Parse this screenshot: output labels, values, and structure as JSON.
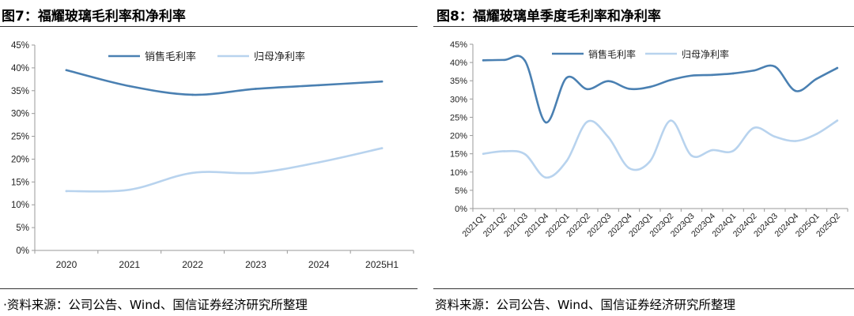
{
  "left": {
    "figure_title": "图7：福耀玻璃毛利率和净利率",
    "source": "·资料来源：公司公告、Wind、国信证券经济研究所整理"
  },
  "right": {
    "figure_title": "图8：福耀玻璃单季度毛利率和净利率",
    "source": "资料来源：公司公告、Wind、国信证券经济研究所整理"
  },
  "colors": {
    "gross": "#4a80b2",
    "net": "#b8d3ee",
    "axis": "#9a9a9a",
    "rule": "#333333"
  },
  "chart_data": [
    {
      "type": "line",
      "categories": [
        "2020",
        "2021",
        "2022",
        "2023",
        "2024",
        "2025H1"
      ],
      "series": [
        {
          "name": "销售毛利率",
          "values": [
            39.5,
            36.0,
            34.1,
            35.4,
            36.2,
            37.0
          ]
        },
        {
          "name": "归母净利率",
          "values": [
            13.0,
            13.3,
            17.0,
            17.0,
            19.3,
            22.4
          ]
        }
      ],
      "ylim": [
        0,
        45
      ],
      "yticks": [
        "0%",
        "5%",
        "10%",
        "15%",
        "20%",
        "25%",
        "30%",
        "35%",
        "40%",
        "45%"
      ],
      "grid": false,
      "legend": "top-center"
    },
    {
      "type": "line",
      "categories": [
        "2021Q1",
        "2021Q2",
        "2021Q3",
        "2021Q4",
        "2022Q1",
        "2022Q2",
        "2022Q3",
        "2022Q4",
        "2023Q1",
        "2023Q2",
        "2023Q3",
        "2023Q4",
        "2024Q1",
        "2024Q2",
        "2024Q3",
        "2024Q4",
        "2025Q1",
        "2025Q2"
      ],
      "series": [
        {
          "name": "销售毛利率",
          "values": [
            40.6,
            40.7,
            40.5,
            23.6,
            35.8,
            32.7,
            34.9,
            32.8,
            33.3,
            35.2,
            36.4,
            36.6,
            37.0,
            37.8,
            38.9,
            32.2,
            35.5,
            38.5
          ]
        },
        {
          "name": "归母净利率",
          "values": [
            15.0,
            15.7,
            14.9,
            8.5,
            13.0,
            23.8,
            19.6,
            11.1,
            12.9,
            24.1,
            14.5,
            16.0,
            15.8,
            22.1,
            19.7,
            18.5,
            20.4,
            24.1
          ]
        }
      ],
      "ylim": [
        0,
        45
      ],
      "yticks": [
        "0%",
        "5%",
        "10%",
        "15%",
        "20%",
        "25%",
        "30%",
        "35%",
        "40%",
        "45%"
      ],
      "grid": false,
      "legend": "top-center"
    }
  ]
}
